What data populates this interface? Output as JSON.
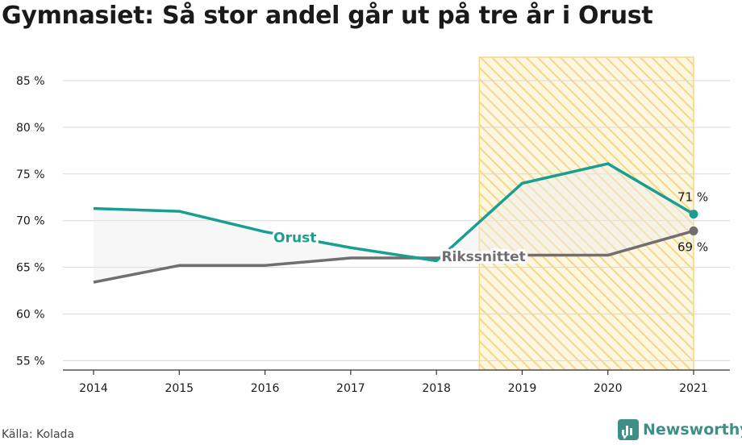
{
  "title": "Gymnasiet: Så stor andel går ut på tre år i Orust",
  "source": "Källa: Kolada",
  "brand": {
    "name": "Newsworthy",
    "color": "#3d8f88"
  },
  "chart_data": {
    "type": "line",
    "x": [
      2014,
      2015,
      2016,
      2017,
      2018,
      2019,
      2020,
      2021
    ],
    "x_tick_labels": [
      "2014",
      "2015",
      "2016",
      "2017",
      "2018",
      "2019",
      "2020",
      "2021"
    ],
    "ylim": [
      54,
      87.5
    ],
    "y_ticks": [
      55,
      60,
      65,
      70,
      75,
      80,
      85
    ],
    "y_tick_labels": [
      "55 %",
      "60 %",
      "65 %",
      "70 %",
      "75 %",
      "80 %",
      "85 %"
    ],
    "grid": true,
    "highlight_range": {
      "from": 2018.5,
      "to": 2021,
      "color": "#f5d78a",
      "pattern": "hatched"
    },
    "series": [
      {
        "name": "Orust",
        "color": "#1a9e91",
        "values": [
          71.3,
          71.0,
          68.8,
          67.1,
          65.7,
          74.0,
          76.1,
          70.7
        ],
        "end_label": "71 %"
      },
      {
        "name": "Rikssnittet",
        "color": "#716e72",
        "values": [
          63.4,
          65.2,
          65.2,
          66.0,
          66.0,
          66.3,
          66.3,
          68.9
        ],
        "end_label": "69 %"
      }
    ]
  }
}
